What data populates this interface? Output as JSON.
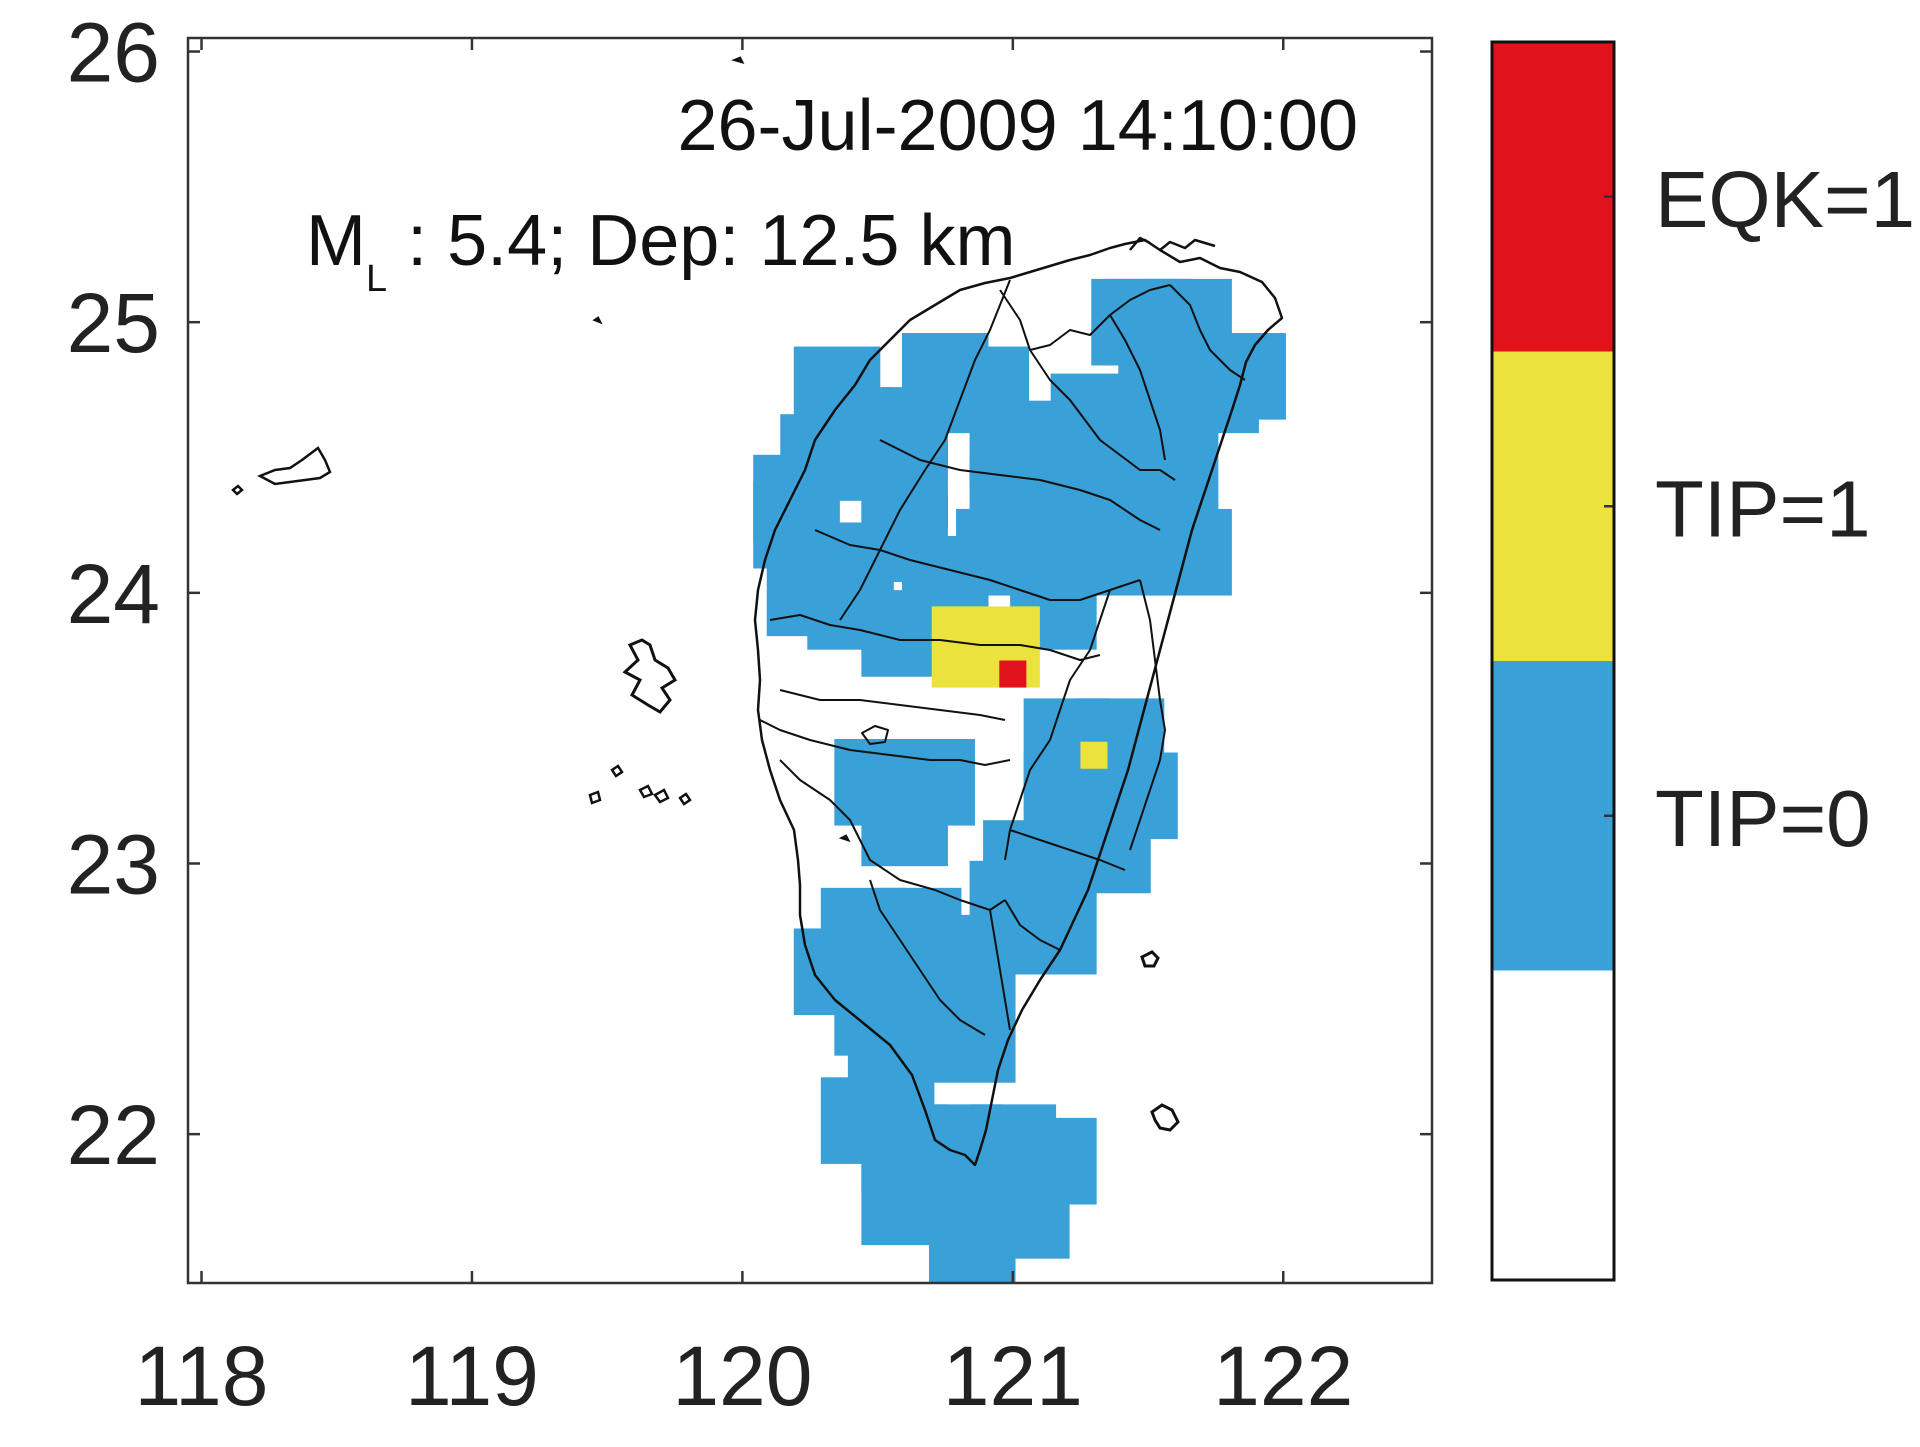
{
  "map": {
    "timestamp": "26-Jul-2009 14:10:00",
    "magnitude_symbol": "M",
    "magnitude_subscript": "L",
    "magnitude_text": " : 5.4;  Dep: 12.5 km",
    "magnitude": 5.4,
    "depth_km": 12.5,
    "lon_range": [
      117.95,
      122.55
    ],
    "lat_range": [
      21.45,
      26.05
    ],
    "xticks": [
      {
        "value": 118,
        "label": "118"
      },
      {
        "value": 119,
        "label": "119"
      },
      {
        "value": 120,
        "label": "120"
      },
      {
        "value": 121,
        "label": "121"
      },
      {
        "value": 122,
        "label": "122"
      }
    ],
    "yticks": [
      {
        "value": 22,
        "label": "22"
      },
      {
        "value": 23,
        "label": "23"
      },
      {
        "value": 24,
        "label": "24"
      },
      {
        "value": 25,
        "label": "25"
      },
      {
        "value": 26,
        "label": "26"
      }
    ],
    "cell_size_deg": 0.1,
    "colors": {
      "tip0": "#3aa0d8",
      "tip1": "#ece23e",
      "eqk": "#e0121b",
      "background": "#ffffff",
      "outline": "#111111"
    },
    "tip0_cells": [
      {
        "lon": 121.45,
        "lat": 25.0
      },
      {
        "lon": 121.5,
        "lat": 25.0
      },
      {
        "lon": 121.65,
        "lat": 25.0
      },
      {
        "lon": 120.35,
        "lat": 24.75
      },
      {
        "lon": 120.4,
        "lat": 24.6
      },
      {
        "lon": 120.3,
        "lat": 24.5
      },
      {
        "lon": 120.2,
        "lat": 24.35
      },
      {
        "lon": 120.2,
        "lat": 24.25
      },
      {
        "lon": 120.35,
        "lat": 24.1
      },
      {
        "lon": 120.25,
        "lat": 24.0
      },
      {
        "lon": 120.4,
        "lat": 23.95
      },
      {
        "lon": 120.6,
        "lat": 23.85
      },
      {
        "lon": 120.75,
        "lat": 24.05
      },
      {
        "lon": 120.6,
        "lat": 24.2
      },
      {
        "lon": 120.6,
        "lat": 24.4
      },
      {
        "lon": 120.6,
        "lat": 24.6
      },
      {
        "lon": 120.75,
        "lat": 24.8
      },
      {
        "lon": 120.9,
        "lat": 24.75
      },
      {
        "lon": 121.0,
        "lat": 24.55
      },
      {
        "lon": 121.0,
        "lat": 24.35
      },
      {
        "lon": 120.95,
        "lat": 24.15
      },
      {
        "lon": 121.15,
        "lat": 24.2
      },
      {
        "lon": 121.3,
        "lat": 24.4
      },
      {
        "lon": 121.3,
        "lat": 24.65
      },
      {
        "lon": 121.55,
        "lat": 24.7
      },
      {
        "lon": 121.75,
        "lat": 24.75
      },
      {
        "lon": 121.85,
        "lat": 24.8
      },
      {
        "lon": 121.6,
        "lat": 24.45
      },
      {
        "lon": 121.45,
        "lat": 24.15
      },
      {
        "lon": 121.65,
        "lat": 24.15
      },
      {
        "lon": 121.15,
        "lat": 23.95
      },
      {
        "lon": 121.4,
        "lat": 23.45
      },
      {
        "lon": 121.2,
        "lat": 23.45
      },
      {
        "lon": 121.2,
        "lat": 23.25
      },
      {
        "lon": 121.45,
        "lat": 23.25
      },
      {
        "lon": 121.35,
        "lat": 23.05
      },
      {
        "lon": 121.05,
        "lat": 23.0
      },
      {
        "lon": 121.0,
        "lat": 22.85
      },
      {
        "lon": 121.15,
        "lat": 22.75
      },
      {
        "lon": 120.85,
        "lat": 22.65
      },
      {
        "lon": 120.65,
        "lat": 22.75
      },
      {
        "lon": 120.45,
        "lat": 22.75
      },
      {
        "lon": 120.35,
        "lat": 22.6
      },
      {
        "lon": 120.5,
        "lat": 22.45
      },
      {
        "lon": 120.7,
        "lat": 22.45
      },
      {
        "lon": 120.85,
        "lat": 22.35
      },
      {
        "lon": 120.55,
        "lat": 22.2
      },
      {
        "lon": 120.45,
        "lat": 22.05
      },
      {
        "lon": 120.6,
        "lat": 21.95
      },
      {
        "lon": 120.8,
        "lat": 21.95
      },
      {
        "lon": 121.0,
        "lat": 21.95
      },
      {
        "lon": 121.15,
        "lat": 21.9
      },
      {
        "lon": 120.6,
        "lat": 21.75
      },
      {
        "lon": 120.85,
        "lat": 21.7
      },
      {
        "lon": 121.05,
        "lat": 21.7
      },
      {
        "lon": 120.85,
        "lat": 21.5
      },
      {
        "lon": 120.5,
        "lat": 23.3
      },
      {
        "lon": 120.6,
        "lat": 23.15
      },
      {
        "lon": 120.7,
        "lat": 23.3
      }
    ],
    "tip1_cells": [
      {
        "lon": 121.3,
        "lat": 23.4
      }
    ],
    "tip1_block": {
      "lon_min": 120.7,
      "lon_max": 121.1,
      "lat_min": 23.65,
      "lat_max": 23.95
    },
    "eqk_cell": {
      "lon": 121.0,
      "lat": 23.7
    },
    "colorbar": {
      "segments": [
        {
          "label": "EQK=1",
          "color": "#e0121b"
        },
        {
          "label": "TIP=1",
          "color": "#ece23e"
        },
        {
          "label": "TIP=0",
          "color": "#3aa0d8"
        },
        {
          "label": "",
          "color": "#ffffff"
        }
      ]
    }
  }
}
